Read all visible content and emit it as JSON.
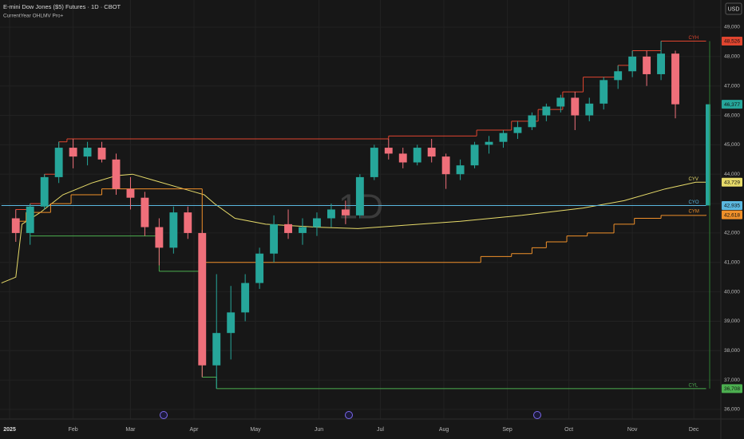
{
  "chart_data": {
    "type": "candlestick",
    "title": "E-mini Dow Jones ($5) Futures · 1D · CBOT",
    "subtitle": "CurrentYear OHLMV Pro+",
    "currency": "USD",
    "watermark": "1D",
    "up_color": "#26a69a",
    "down_color": "#ef6f7a",
    "grid": true,
    "xlim": [
      -4.7,
      347.2
    ],
    "ylim": [
      35674,
      49923
    ],
    "xticks": [
      {
        "value": 0,
        "label": "2025"
      },
      {
        "value": 31,
        "label": "Feb"
      },
      {
        "value": 59,
        "label": "Mar"
      },
      {
        "value": 90,
        "label": "Apr"
      },
      {
        "value": 120,
        "label": "May"
      },
      {
        "value": 151,
        "label": "Jun"
      },
      {
        "value": 181,
        "label": "Jul"
      },
      {
        "value": 212,
        "label": "Aug"
      },
      {
        "value": 243,
        "label": "Sep"
      },
      {
        "value": 273,
        "label": "Oct"
      },
      {
        "value": 304,
        "label": "Nov"
      },
      {
        "value": 334,
        "label": "Dec"
      }
    ],
    "yticks": [
      {
        "value": 36000,
        "label": "36,000"
      },
      {
        "value": 37000,
        "label": "37,000"
      },
      {
        "value": 38000,
        "label": "38,000"
      },
      {
        "value": 39000,
        "label": "39,000"
      },
      {
        "value": 40000,
        "label": "40,000"
      },
      {
        "value": 41000,
        "label": "41,000"
      },
      {
        "value": 42000,
        "label": "42,000"
      },
      {
        "value": 43000,
        "label": "43,000"
      },
      {
        "value": 44000,
        "label": "44,000"
      },
      {
        "value": 45000,
        "label": "45,000"
      },
      {
        "value": 46000,
        "label": "46,000"
      },
      {
        "value": 47000,
        "label": "47,000"
      },
      {
        "value": 48000,
        "label": "48,000"
      },
      {
        "value": 49000,
        "label": "49,000"
      }
    ],
    "candles": {
      "x": [
        3,
        10,
        17,
        24,
        31,
        38,
        45,
        52,
        59,
        66,
        73,
        80,
        87,
        94,
        101,
        108,
        115,
        122,
        129,
        136,
        143,
        150,
        157,
        164,
        171,
        178,
        185,
        192,
        199,
        206,
        213,
        220,
        227,
        234,
        241,
        248,
        255,
        262,
        269,
        276,
        283,
        290,
        297,
        304,
        311,
        318,
        325
      ],
      "open": [
        42500,
        42000,
        42900,
        43900,
        44900,
        44600,
        44900,
        44500,
        43500,
        43200,
        42200,
        41500,
        42700,
        42000,
        37500,
        38600,
        39300,
        40300,
        41300,
        42300,
        42000,
        42200,
        42500,
        42800,
        42600,
        43900,
        44900,
        44700,
        44400,
        44900,
        44600,
        44000,
        44300,
        45000,
        45100,
        45400,
        45600,
        46000,
        46300,
        46600,
        46000,
        46400,
        47200,
        47500,
        48000,
        47400,
        48100
      ],
      "high": [
        42800,
        43000,
        44000,
        45100,
        45200,
        45100,
        45100,
        44700,
        43900,
        43400,
        42500,
        42900,
        42900,
        42100,
        40600,
        40200,
        40600,
        41500,
        42600,
        42800,
        42500,
        42700,
        43000,
        43100,
        44000,
        45000,
        45200,
        44900,
        45000,
        45200,
        44700,
        44500,
        45100,
        45300,
        45500,
        45800,
        46100,
        46400,
        46700,
        46800,
        46600,
        47300,
        47700,
        48200,
        48200,
        48526,
        48200
      ],
      "low": [
        41700,
        41600,
        42800,
        43700,
        44200,
        44300,
        44400,
        43300,
        42800,
        41900,
        40900,
        41300,
        41800,
        37100,
        36708,
        37700,
        39000,
        40100,
        41000,
        41800,
        41600,
        41900,
        42200,
        42300,
        42500,
        43800,
        44500,
        44200,
        44300,
        44400,
        43500,
        43800,
        44200,
        44700,
        44900,
        45200,
        45500,
        45800,
        46100,
        45500,
        45800,
        46200,
        46900,
        47300,
        47000,
        47200,
        45900
      ],
      "close": [
        42000,
        42900,
        43900,
        44900,
        44600,
        44900,
        44500,
        43500,
        43200,
        42200,
        41500,
        42700,
        42000,
        37500,
        38600,
        39300,
        40300,
        41300,
        42300,
        42000,
        42200,
        42500,
        42800,
        42600,
        43900,
        44900,
        44700,
        44400,
        44900,
        44600,
        44000,
        44300,
        45000,
        45100,
        45400,
        45600,
        46000,
        46300,
        46600,
        46000,
        46400,
        47200,
        47500,
        48000,
        47400,
        48100,
        46377
      ]
    },
    "lines": [
      {
        "name": "CYH",
        "color": "#e0452f",
        "step": true,
        "x": [
          3,
          10,
          17,
          24,
          28,
          185,
          228,
          245,
          258,
          270,
          280,
          297,
          304,
          318,
          340
        ],
        "values": [
          42800,
          43000,
          44000,
          45100,
          45200,
          45300,
          45500,
          45800,
          46200,
          46800,
          47300,
          47700,
          48200,
          48526,
          48526
        ]
      },
      {
        "name": "CYV",
        "color": "#e8dc6a",
        "step": false,
        "x": [
          -4,
          3,
          6,
          15,
          26,
          40,
          52,
          60,
          70,
          85,
          95,
          100,
          110,
          125,
          150,
          170,
          190,
          220,
          250,
          280,
          300,
          320,
          335,
          340
        ],
        "values": [
          40300,
          40500,
          42300,
          42700,
          43300,
          43700,
          43950,
          44000,
          43800,
          43500,
          43300,
          43000,
          42500,
          42300,
          42200,
          42150,
          42250,
          42400,
          42600,
          42850,
          43100,
          43500,
          43729,
          43729
        ]
      },
      {
        "name": "CYO",
        "color": "#5bb8e0",
        "step": false,
        "x": [
          -4,
          340
        ],
        "values": [
          42935,
          42935
        ]
      },
      {
        "name": "CYM",
        "color": "#f0902a",
        "step": true,
        "x": [
          3,
          8,
          20,
          30,
          45,
          94,
          230,
          245,
          255,
          262,
          272,
          282,
          295,
          305,
          318,
          340
        ],
        "values": [
          42400,
          42700,
          43000,
          43300,
          43500,
          41000,
          41200,
          41300,
          41500,
          41700,
          41900,
          42000,
          42300,
          42500,
          42600,
          42618
        ]
      },
      {
        "name": "CYL",
        "color": "#4caf50",
        "step": true,
        "x": [
          10,
          73,
          94,
          101,
          340
        ],
        "values": [
          41900,
          40700,
          37100,
          36708,
          36708
        ]
      }
    ],
    "price_tags": [
      {
        "value": 48526,
        "label": "48,526",
        "color": "#e0452f"
      },
      {
        "value": 46377,
        "label": "46,377",
        "color": "#26a69a"
      },
      {
        "value": 43729,
        "label": "43,729",
        "color": "#e8dc6a"
      },
      {
        "value": 42935,
        "label": "42,935",
        "color": "#5bb8e0"
      },
      {
        "value": 42618,
        "label": "42,618",
        "color": "#f0902a"
      },
      {
        "value": 36708,
        "label": "36,708",
        "color": "#4caf50"
      }
    ]
  }
}
